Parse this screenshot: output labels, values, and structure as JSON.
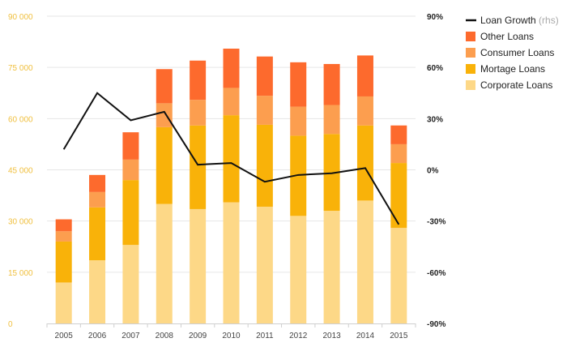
{
  "chart_data": {
    "type": "bar",
    "stacked": true,
    "categories": [
      "2005",
      "2006",
      "2007",
      "2008",
      "2009",
      "2010",
      "2011",
      "2012",
      "2013",
      "2014",
      "2015"
    ],
    "series": [
      {
        "name": "Corporate Loans",
        "color": "#fdd887",
        "values": [
          12000,
          18500,
          23000,
          35000,
          33500,
          35500,
          34200,
          31500,
          33000,
          36000,
          28000
        ]
      },
      {
        "name": "Mortage Loans",
        "color": "#f9b209",
        "values": [
          12000,
          15500,
          19000,
          22500,
          24500,
          25500,
          24000,
          23500,
          22500,
          22000,
          19000
        ]
      },
      {
        "name": "Consumer Loans",
        "color": "#fc9e4f",
        "values": [
          3000,
          4500,
          6000,
          7000,
          7500,
          8000,
          8500,
          8500,
          8500,
          8500,
          5500
        ]
      },
      {
        "name": "Other Loans",
        "color": "#fd6a2d",
        "values": [
          3500,
          5000,
          8000,
          10000,
          11500,
          11500,
          11500,
          13000,
          12000,
          12000,
          5500
        ]
      }
    ],
    "line": {
      "name": "Loan Growth",
      "suffix": "(rhs)",
      "color": "#111111",
      "values": [
        12,
        45,
        29,
        34,
        3,
        4,
        -7,
        -3,
        -2,
        1,
        -32
      ]
    },
    "y_left": {
      "min": 0,
      "max": 90000,
      "ticks": [
        "0",
        "15 000",
        "30 000",
        "45 000",
        "60 000",
        "75 000",
        "90 000"
      ],
      "values": [
        0,
        15000,
        30000,
        45000,
        60000,
        75000,
        90000
      ]
    },
    "y_right": {
      "min": -90,
      "max": 90,
      "ticks": [
        "-90%",
        "-60%",
        "-30%",
        "0%",
        "30%",
        "60%",
        "90%"
      ],
      "values": [
        -90,
        -60,
        -30,
        0,
        30,
        60,
        90
      ]
    },
    "grid": true,
    "legend_position": "top-right",
    "legend_order": [
      "Loan Growth",
      "Other Loans",
      "Consumer Loans",
      "Mortage Loans",
      "Corporate Loans"
    ]
  }
}
